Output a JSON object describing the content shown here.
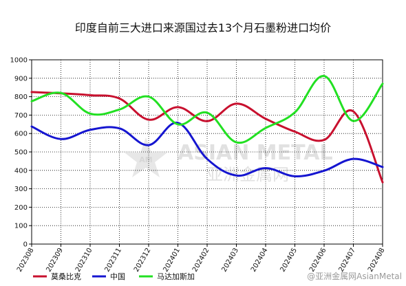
{
  "chart_data": {
    "type": "line",
    "title": "印度自前三大进口来源国过去13个月石墨粉进口均价",
    "xlabel": "",
    "ylabel": "",
    "ylim": [
      0,
      1000
    ],
    "yticks": [
      0,
      100,
      200,
      300,
      400,
      500,
      600,
      700,
      800,
      900,
      1000
    ],
    "grid": true,
    "legend_position": "bottom",
    "categories": [
      "202308",
      "202309",
      "202310",
      "202311",
      "202312",
      "202401",
      "202402",
      "202403",
      "202404",
      "202405",
      "202406",
      "202407",
      "202408"
    ],
    "series": [
      {
        "name": "莫桑比克",
        "color": "#c8102e",
        "values": [
          825,
          818,
          808,
          790,
          675,
          743,
          667,
          762,
          680,
          610,
          565,
          720,
          335
        ]
      },
      {
        "name": "中国",
        "color": "#1515d0",
        "values": [
          638,
          570,
          620,
          628,
          537,
          658,
          462,
          372,
          412,
          368,
          398,
          462,
          418
        ]
      },
      {
        "name": "马达加斯加",
        "color": "#22e022",
        "values": [
          775,
          820,
          708,
          730,
          800,
          650,
          713,
          552,
          630,
          715,
          912,
          668,
          870
        ]
      }
    ]
  },
  "watermark": {
    "logo_text": "AM",
    "brand_en": "ASIAN METAL",
    "brand_cn": "亚洲金属网"
  },
  "credit": "@亚洲金属网AsianMetal"
}
